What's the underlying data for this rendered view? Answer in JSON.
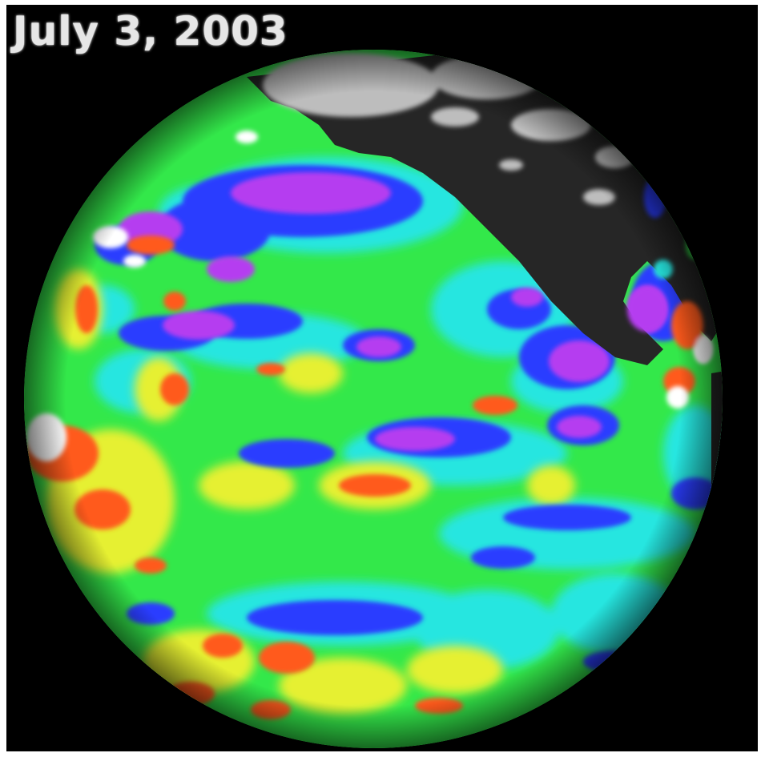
{
  "title": "July 3, 2003",
  "image": {
    "subject": "globe-sea-surface-height-anomaly",
    "colors": {
      "background": "#000000",
      "land": "#262626",
      "ice": "#bdbdbd",
      "ocean_base": "#33e84a",
      "cyan": "#27e6e0",
      "blue": "#2a3cff",
      "purple": "#b53cf0",
      "yellow": "#e6f032",
      "orange": "#ff5a1a",
      "white": "#ffffff"
    }
  }
}
